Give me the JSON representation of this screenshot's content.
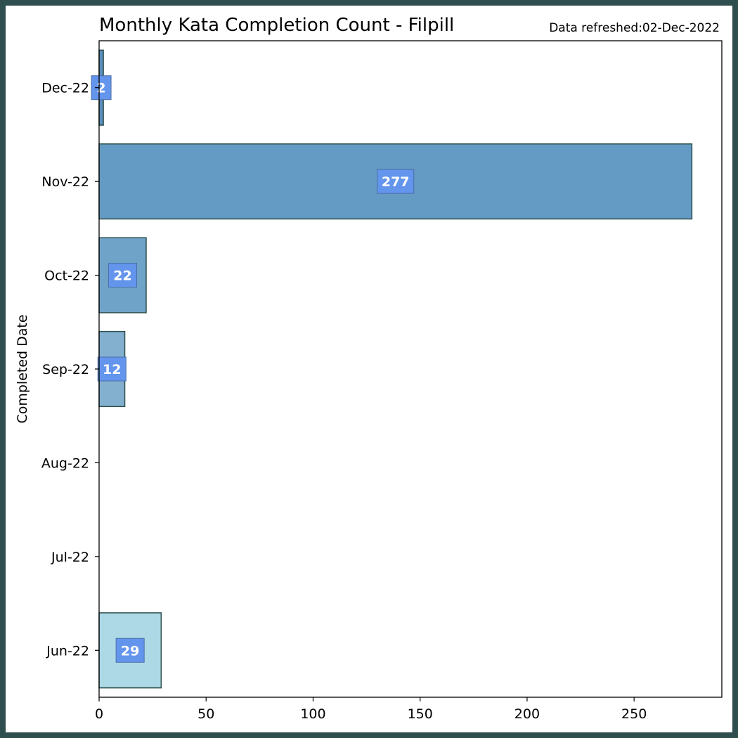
{
  "chart_data": {
    "type": "bar",
    "orientation": "horizontal",
    "title": "Monthly Kata Completion Count - Filpill",
    "subtitle": "Data refreshed:02-Dec-2022",
    "xlabel": "",
    "ylabel": "Completed Date",
    "categories": [
      "Jun-22",
      "Jul-22",
      "Aug-22",
      "Sep-22",
      "Oct-22",
      "Nov-22",
      "Dec-22"
    ],
    "values": [
      29,
      0,
      0,
      12,
      22,
      277,
      2
    ],
    "data_labels": [
      "29",
      "",
      "",
      "12",
      "22",
      "277",
      "2"
    ],
    "xlim": [
      0,
      291
    ],
    "xticks": [
      0,
      50,
      100,
      150,
      200,
      250
    ],
    "xtick_labels": [
      "0",
      "50",
      "100",
      "150",
      "200",
      "250"
    ],
    "grid": false,
    "legend": "none",
    "colors": {
      "bars": [
        "#add8e6",
        "#a1c9dd",
        "#95bad5",
        "#84b0d0",
        "#6fa3c8",
        "#649bc4",
        "#5b8fbb"
      ],
      "bar_edge": "#2f4f4f",
      "label_box": "#6495ed",
      "frame": "#2f4f4f"
    }
  }
}
